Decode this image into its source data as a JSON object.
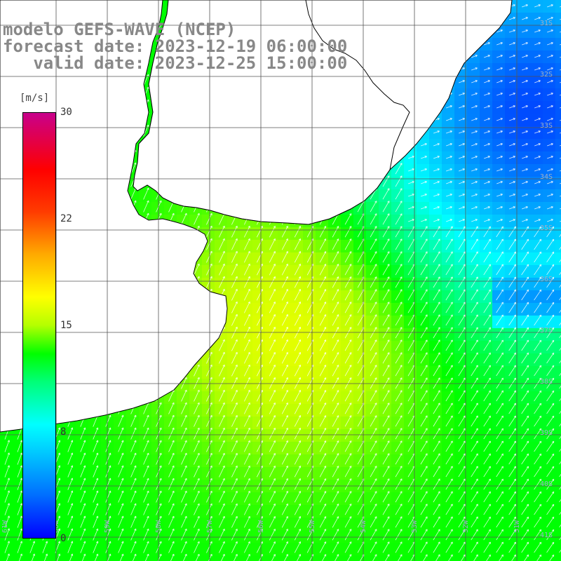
{
  "title": {
    "line1": "modelo GEFS-WAVE (NCEP)",
    "line2": "forecast date: 2023-12-19 06:00:00",
    "line3": "   valid date: 2023-12-25 15:00:00"
  },
  "legend": {
    "unit": "[m/s]",
    "ticks": [
      "30",
      "22",
      "15",
      "8",
      "0"
    ],
    "range": [
      0,
      30
    ]
  },
  "lon_labels": [
    "61W",
    "60W",
    "59W",
    "58W",
    "57W",
    "56W",
    "55W",
    "54W",
    "53W",
    "52W",
    "51W"
  ],
  "lat_labels": [
    "31S",
    "32S",
    "33S",
    "34S",
    "35S",
    "36S",
    "37S",
    "38S",
    "39S",
    "40S",
    "41S"
  ],
  "colors": {
    "land": "#ffffff",
    "coast": "#000000",
    "grid": "#555555",
    "arrow": "#ffffff"
  },
  "wind": {
    "description_unit": "m/s",
    "field_peak": 16,
    "field_min": 2
  }
}
